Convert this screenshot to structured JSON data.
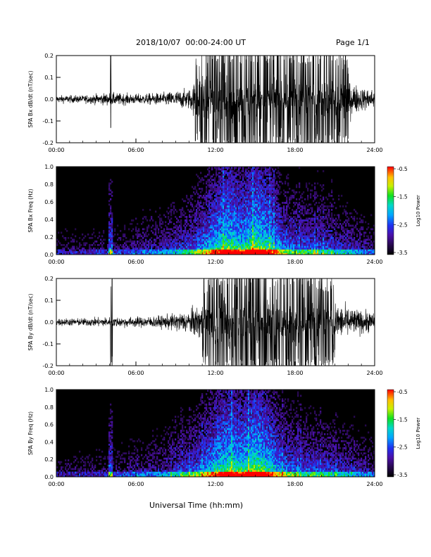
{
  "header": {
    "title": "2018/10/07  00:00-24:00 UT",
    "page": "Page 1/1"
  },
  "footer": {
    "xlabel": "Universal Time (hh:mm)"
  },
  "colors": {
    "trace": "#000000",
    "background": "#ffffff",
    "spectrogram_background": "#000000"
  },
  "chart_data": [
    {
      "type": "line",
      "ylabel": "SPA Bx dB/dt (nT/sec)",
      "x_ticks": [
        "00:00",
        "06:00",
        "12:00",
        "18:00",
        "24:00"
      ],
      "y_ticks": [
        "-0.2",
        "-0.1",
        "0.0",
        "0.1",
        "0.2"
      ],
      "xlim_hours": [
        0,
        24
      ],
      "ylim": [
        -0.2,
        0.2
      ],
      "envelope_hours": [
        0,
        2,
        4,
        6,
        8,
        10,
        11,
        12,
        13,
        14,
        15,
        16,
        17,
        18,
        19,
        20,
        21,
        22,
        23,
        24
      ],
      "envelope_amplitude": [
        0.03,
        0.03,
        0.05,
        0.04,
        0.05,
        0.08,
        0.2,
        0.2,
        0.2,
        0.2,
        0.2,
        0.2,
        0.2,
        0.2,
        0.2,
        0.2,
        0.2,
        0.15,
        0.09,
        0.08
      ],
      "spikes_hours": [
        4.1,
        10.5
      ]
    },
    {
      "type": "heatmap",
      "ylabel": "SPA Bx Freq (Hz)",
      "x_ticks": [
        "00:00",
        "06:00",
        "12:00",
        "18:00",
        "24:00"
      ],
      "y_ticks": [
        "0.0",
        "0.2",
        "0.4",
        "0.6",
        "0.8",
        "1.0"
      ],
      "xlim_hours": [
        0,
        24
      ],
      "ylim": [
        0,
        1.0
      ],
      "colorbar": {
        "label": "Log10 Power",
        "ticks": [
          "-0.5",
          "-1.5",
          "-2.5",
          "-3.5"
        ],
        "range": [
          -3.5,
          -0.5
        ]
      },
      "activity_hours": [
        0,
        4,
        8,
        10,
        11,
        12,
        13,
        14,
        15,
        16,
        17,
        18,
        20,
        22,
        24
      ],
      "activity_level": [
        0.1,
        0.15,
        0.3,
        0.45,
        0.6,
        0.8,
        0.95,
        0.8,
        1.0,
        0.85,
        0.6,
        0.5,
        0.45,
        0.35,
        0.2
      ]
    },
    {
      "type": "line",
      "ylabel": "SPA By dB/dt (nT/sec)",
      "x_ticks": [
        "00:00",
        "06:00",
        "12:00",
        "18:00",
        "24:00"
      ],
      "y_ticks": [
        "-0.2",
        "-0.1",
        "0.0",
        "0.1",
        "0.2"
      ],
      "xlim_hours": [
        0,
        24
      ],
      "ylim": [
        -0.2,
        0.2
      ],
      "envelope_hours": [
        0,
        2,
        4,
        6,
        8,
        10,
        11,
        12,
        13,
        14,
        15,
        16,
        17,
        18,
        19,
        20,
        21,
        22,
        23,
        24
      ],
      "envelope_amplitude": [
        0.03,
        0.03,
        0.04,
        0.04,
        0.05,
        0.09,
        0.15,
        0.2,
        0.2,
        0.2,
        0.2,
        0.2,
        0.2,
        0.2,
        0.2,
        0.18,
        0.15,
        0.12,
        0.09,
        0.08
      ],
      "spikes_hours": [
        4.1,
        4.2
      ]
    },
    {
      "type": "heatmap",
      "ylabel": "SPA By Freq (Hz)",
      "x_ticks": [
        "00:00",
        "06:00",
        "12:00",
        "18:00",
        "24:00"
      ],
      "y_ticks": [
        "0.0",
        "0.2",
        "0.4",
        "0.6",
        "0.8",
        "1.0"
      ],
      "xlim_hours": [
        0,
        24
      ],
      "ylim": [
        0,
        1.0
      ],
      "colorbar": {
        "label": "Log10 Power",
        "ticks": [
          "-0.5",
          "-1.5",
          "-2.5",
          "-3.5"
        ],
        "range": [
          -3.5,
          -0.5
        ]
      },
      "activity_hours": [
        0,
        4,
        8,
        10,
        11,
        12,
        13,
        14,
        15,
        16,
        17,
        18,
        20,
        22,
        24
      ],
      "activity_level": [
        0.1,
        0.15,
        0.3,
        0.45,
        0.6,
        0.8,
        0.95,
        0.85,
        1.0,
        0.85,
        0.6,
        0.5,
        0.45,
        0.35,
        0.2
      ]
    }
  ]
}
